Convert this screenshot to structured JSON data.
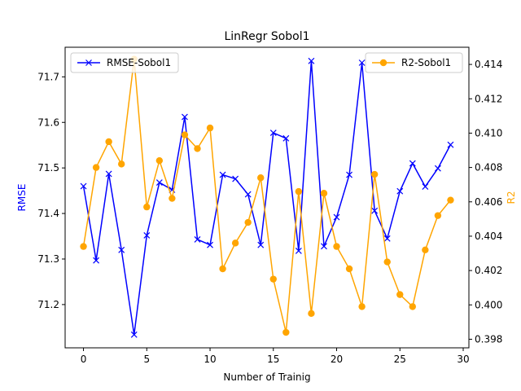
{
  "chart_data": {
    "type": "line",
    "title": "LinRegr Sobol1",
    "xlabel": "Number of Trainig",
    "ylabel_left": "RMSE",
    "ylabel_right": "R2",
    "xlim": [
      -1.45,
      30.45
    ],
    "ylim_left": [
      71.105,
      71.765
    ],
    "ylim_right": [
      0.3975,
      0.415
    ],
    "x_ticks": [
      0,
      5,
      10,
      15,
      20,
      25,
      30
    ],
    "y_ticks_left": [
      71.2,
      71.3,
      71.4,
      71.5,
      71.6,
      71.7
    ],
    "y_ticks_right": [
      0.398,
      0.4,
      0.402,
      0.404,
      0.406,
      0.408,
      0.41,
      0.412,
      0.414
    ],
    "grid": false,
    "x": [
      0,
      1,
      2,
      3,
      4,
      5,
      6,
      7,
      8,
      9,
      10,
      11,
      12,
      13,
      14,
      15,
      16,
      17,
      18,
      19,
      20,
      21,
      22,
      23,
      24,
      25,
      26,
      27,
      28,
      29
    ],
    "series": [
      {
        "name": "RMSE-Sobol1",
        "axis": "left",
        "color": "#0000ff",
        "marker": "x",
        "legend_position": "upper left",
        "values": [
          71.46,
          71.297,
          71.487,
          71.32,
          71.134,
          71.352,
          71.468,
          71.452,
          71.612,
          71.343,
          71.331,
          71.485,
          71.476,
          71.442,
          71.331,
          71.577,
          71.565,
          71.318,
          71.735,
          71.328,
          71.392,
          71.485,
          71.731,
          71.406,
          71.345,
          71.449,
          71.51,
          71.459,
          71.499,
          71.551
        ]
      },
      {
        "name": "R2-Sobol1",
        "axis": "right",
        "color": "#ffa500",
        "marker": "o",
        "legend_position": "upper right",
        "values": [
          0.4034,
          0.408,
          0.4095,
          0.4082,
          0.4143,
          0.4057,
          0.4084,
          0.4062,
          0.4099,
          0.4091,
          0.4103,
          0.4021,
          0.4036,
          0.4048,
          0.4074,
          0.4015,
          0.3984,
          0.4066,
          0.3995,
          0.4065,
          0.4034,
          0.4021,
          0.3999,
          0.4076,
          0.4025,
          0.4006,
          0.3999,
          0.4032,
          0.4052,
          0.4061
        ]
      }
    ]
  }
}
